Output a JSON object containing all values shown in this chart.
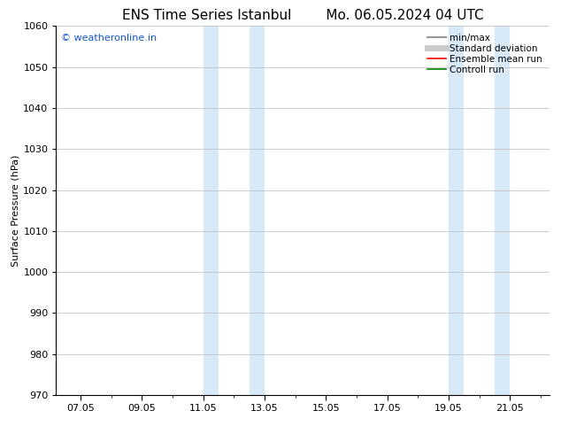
{
  "title_left": "ENS Time Series Istanbul",
  "title_right": "Mo. 06.05.2024 04 UTC",
  "ylabel": "Surface Pressure (hPa)",
  "ylim": [
    970,
    1060
  ],
  "yticks": [
    970,
    980,
    990,
    1000,
    1010,
    1020,
    1030,
    1040,
    1050,
    1060
  ],
  "xlim_start": 6.2,
  "xlim_end": 22.3,
  "xtick_labels": [
    "07.05",
    "09.05",
    "11.05",
    "13.05",
    "15.05",
    "17.05",
    "19.05",
    "21.05"
  ],
  "xtick_positions": [
    7.0,
    9.0,
    11.0,
    13.0,
    15.0,
    17.0,
    19.0,
    21.0
  ],
  "shaded_regions": [
    {
      "xmin": 11.0,
      "xmax": 11.5
    },
    {
      "xmin": 12.5,
      "xmax": 13.0
    },
    {
      "xmin": 19.0,
      "xmax": 19.5
    },
    {
      "xmin": 20.5,
      "xmax": 21.0
    }
  ],
  "shade_color": "#d8eaf8",
  "shade_alpha": 1.0,
  "watermark_text": "© weatheronline.in",
  "watermark_color": "#1155cc",
  "legend_items": [
    {
      "label": "min/max",
      "color": "#999999",
      "lw": 1.5
    },
    {
      "label": "Standard deviation",
      "color": "#cccccc",
      "lw": 5
    },
    {
      "label": "Ensemble mean run",
      "color": "red",
      "lw": 1.2
    },
    {
      "label": "Controll run",
      "color": "green",
      "lw": 1.2
    }
  ],
  "background_color": "#ffffff",
  "grid_color": "#bbbbbb",
  "title_fontsize": 11,
  "axis_label_fontsize": 8,
  "tick_fontsize": 8,
  "watermark_fontsize": 8,
  "legend_fontsize": 7.5
}
